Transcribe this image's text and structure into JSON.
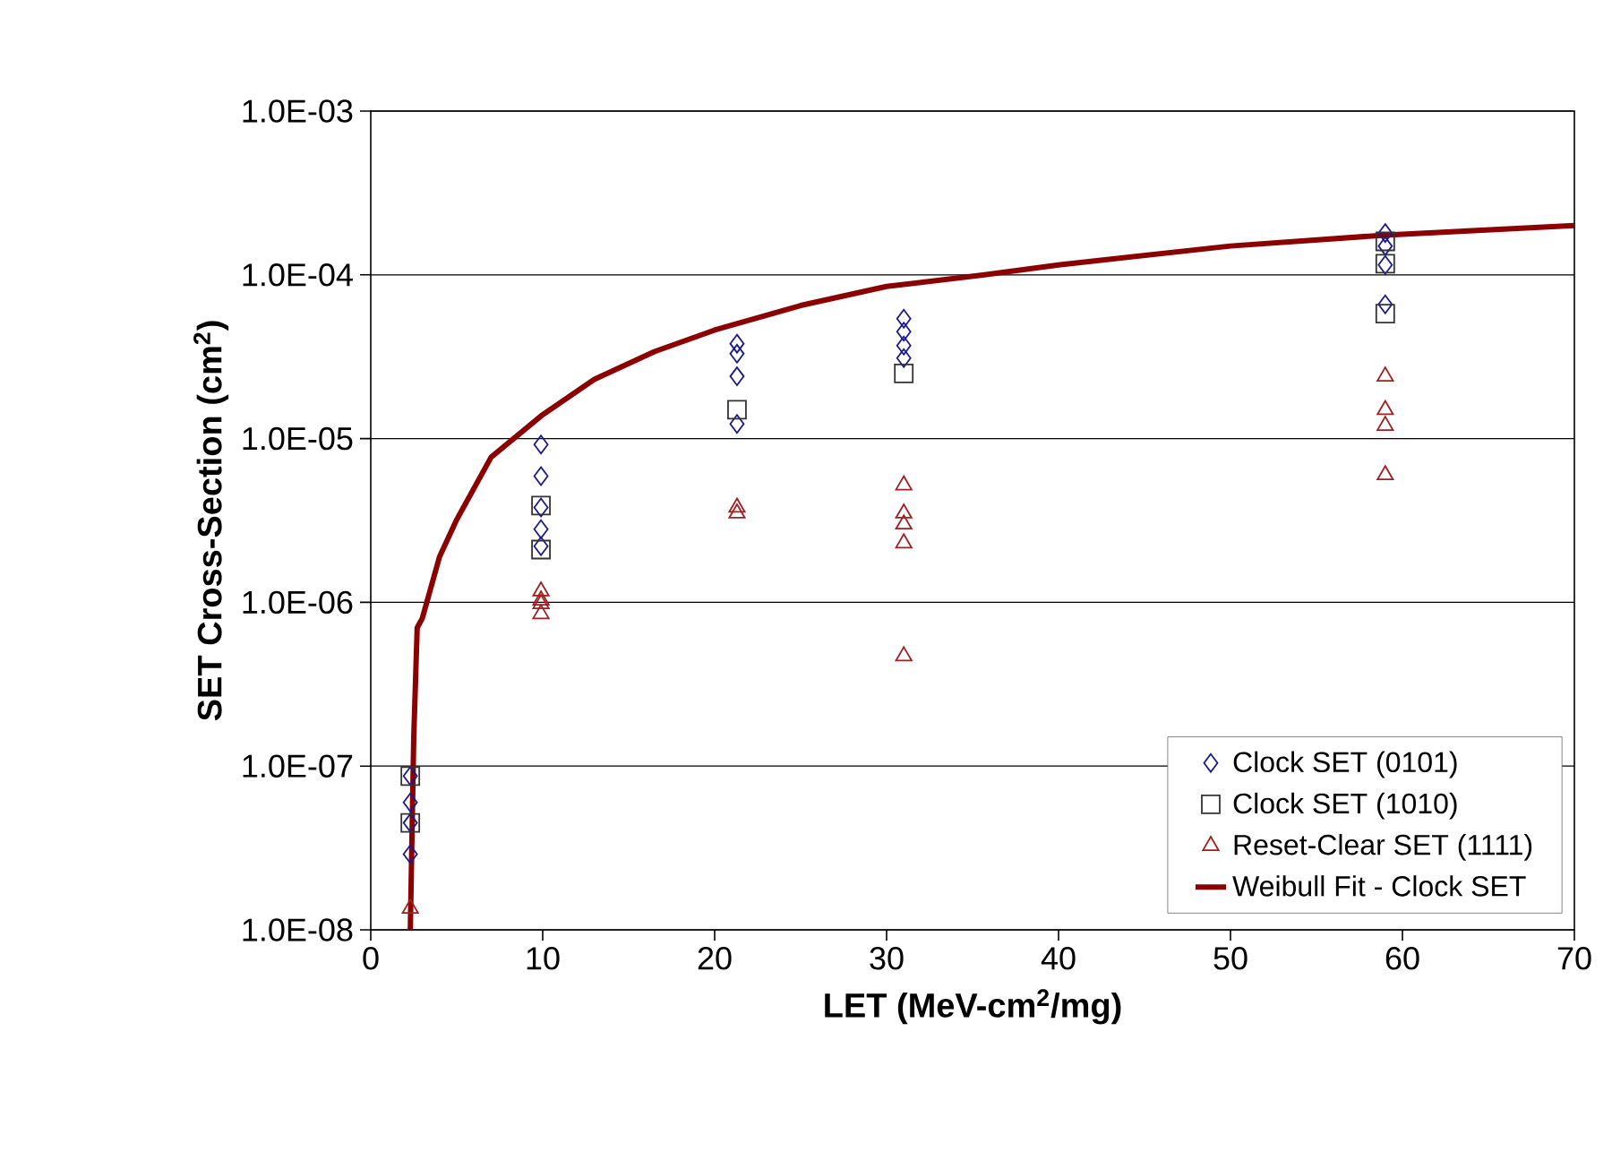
{
  "chart_data": {
    "type": "scatter",
    "xlabel": "LET (MeV-cm$^{2}$/mg)",
    "ylabel": "SET Cross-Section (cm$^{2}$)",
    "xlim": [
      0,
      70
    ],
    "xticks": [
      0,
      10,
      20,
      30,
      40,
      50,
      60,
      70
    ],
    "ylim": [
      1e-08,
      0.001
    ],
    "log": "y",
    "yticks": [
      {
        "value": 1e-08,
        "label": "1.0E-08"
      },
      {
        "value": 1e-07,
        "label": "1.0E-07"
      },
      {
        "value": 1e-06,
        "label": "1.0E-06"
      },
      {
        "value": 1e-05,
        "label": "1.0E-05"
      },
      {
        "value": 0.0001,
        "label": "1.0E-04"
      },
      {
        "value": 0.001,
        "label": "1.0E-03"
      }
    ],
    "grid": "y",
    "legend": "bottom right",
    "series": [
      {
        "name": "Clock SET (0101)",
        "marker": "diamond",
        "color": "#1a1a8c",
        "x": [
          2.3,
          2.3,
          2.3,
          2.3,
          9.9,
          9.9,
          9.9,
          9.9,
          9.9,
          21.3,
          21.3,
          21.3,
          21.3,
          31.0,
          31.0,
          31.0,
          31.0,
          59.0,
          59.0,
          59.0,
          59.0
        ],
        "values": [
          8.7e-08,
          6e-08,
          4.5e-08,
          2.9e-08,
          9.2e-06,
          5.9e-06,
          3.8e-06,
          2.8e-06,
          2.2e-06,
          3.8e-05,
          3.3e-05,
          2.4e-05,
          1.23e-05,
          5.4e-05,
          4.5e-05,
          3.7e-05,
          3.1e-05,
          0.00018,
          0.00015,
          0.000115,
          6.6e-05
        ]
      },
      {
        "name": "Clock SET (1010)",
        "marker": "square",
        "color": "#333333",
        "x": [
          2.3,
          2.3,
          9.9,
          9.9,
          21.3,
          31.0,
          59.0,
          59.0,
          59.0
        ],
        "values": [
          8.7e-08,
          4.5e-08,
          3.9e-06,
          2.1e-06,
          1.5e-05,
          2.5e-05,
          0.00016,
          0.000117,
          5.8e-05
        ]
      },
      {
        "name": "Reset-Clear SET (1111)",
        "marker": "triangle",
        "color": "#a02020",
        "x": [
          2.3,
          9.9,
          9.9,
          9.9,
          9.9,
          21.3,
          21.3,
          31.0,
          31.0,
          31.0,
          31.0,
          31.0,
          59.0,
          59.0,
          59.0,
          59.0
        ],
        "values": [
          1.35e-08,
          1.17e-06,
          1.03e-06,
          9.8e-07,
          8.5e-07,
          3.8e-06,
          3.5e-06,
          5.2e-06,
          3.5e-06,
          3e-06,
          2.3e-06,
          4.7e-07,
          2.4e-05,
          1.5e-05,
          1.2e-05,
          6e-06
        ]
      },
      {
        "name": "Weibull Fit - Clock SET",
        "type": "line",
        "marker": "none",
        "line_style": "solid",
        "color": "#8b0000",
        "x": [
          2.3,
          2.5,
          2.7,
          3,
          4,
          5,
          7,
          10,
          13,
          16.5,
          20,
          25,
          30,
          35.7,
          40,
          50,
          59,
          70
        ],
        "values": [
          1e-08,
          1.5e-07,
          7e-07,
          8e-07,
          1.9e-06,
          3.2e-06,
          7.7e-06,
          1.4e-05,
          2.3e-05,
          3.4e-05,
          4.6e-05,
          6.5e-05,
          8.5e-05,
          0.0001,
          0.000115,
          0.00015,
          0.000175,
          0.0002
        ]
      }
    ]
  }
}
